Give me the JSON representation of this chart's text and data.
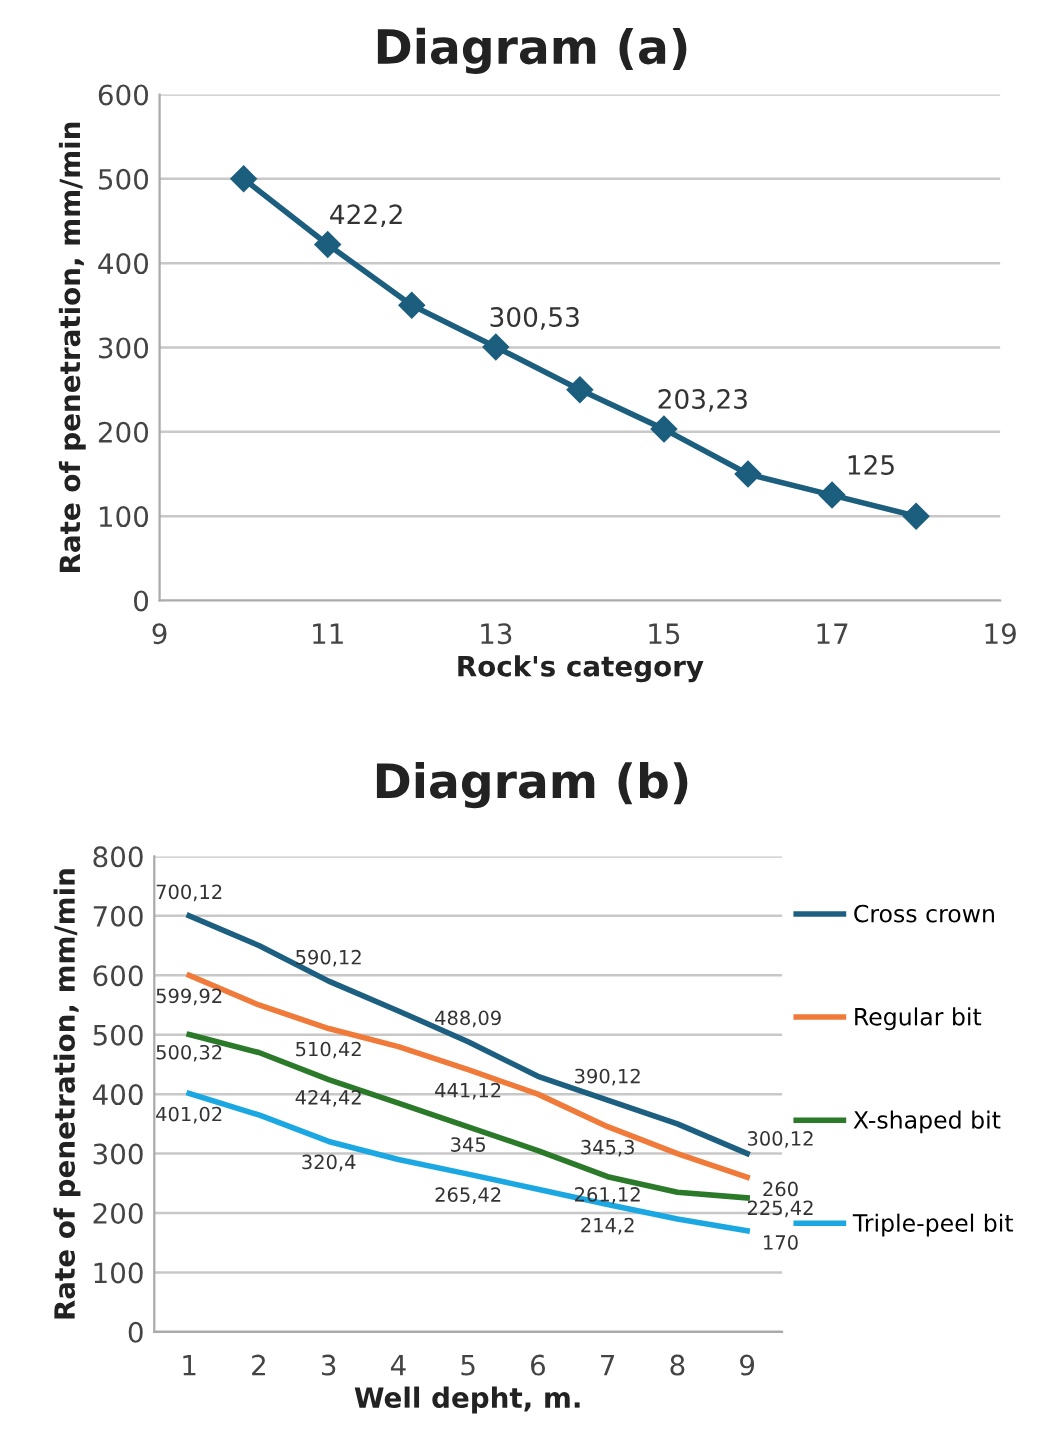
{
  "chart_data": [
    {
      "type": "line",
      "title": "Diagram (a)",
      "xlabel": "Rock's category",
      "ylabel": "Rate of penetration, mm/min",
      "xlim": [
        9,
        19
      ],
      "xticks": [
        9,
        11,
        13,
        15,
        17,
        19
      ],
      "ylim": [
        0,
        600
      ],
      "yticks": [
        0,
        100,
        200,
        300,
        400,
        500,
        600
      ],
      "grid": "y",
      "marker": "diamond",
      "line_style": "solid",
      "legend": false,
      "series": [
        {
          "color": "#1b5e7e",
          "x": [
            10,
            11,
            12,
            13,
            14,
            15,
            16,
            17,
            18
          ],
          "values": [
            500,
            422.2,
            350,
            300.53,
            250,
            203.23,
            150,
            125,
            100
          ],
          "value_labels": [
            null,
            "422,2",
            null,
            "300,53",
            null,
            "203,23",
            null,
            "125",
            null
          ]
        }
      ]
    },
    {
      "type": "line",
      "title": "Diagram (b)",
      "xlabel": "Well depht, m.",
      "ylabel": "Rate of penetration, mm/min",
      "categories": [
        "1",
        "2",
        "3",
        "4",
        "5",
        "6",
        "7",
        "8",
        "9"
      ],
      "ylim": [
        0,
        800
      ],
      "yticks": [
        0,
        100,
        200,
        300,
        400,
        500,
        600,
        700,
        800
      ],
      "grid": "y",
      "marker": "none",
      "line_style": "solid",
      "legend": "right",
      "series": [
        {
          "name": "Cross crown",
          "color": "#1d5f80",
          "values": [
            700.12,
            650,
            590.12,
            540,
            488.09,
            430,
            390.12,
            350,
            300.12
          ],
          "value_labels": [
            "700,12",
            null,
            "590,12",
            null,
            "488,09",
            null,
            "390,12",
            null,
            "300,12"
          ]
        },
        {
          "name": "Regular bit",
          "color": "#f07a3a",
          "values": [
            599.92,
            550,
            510.42,
            480,
            441.12,
            400,
            345.3,
            300,
            260
          ],
          "value_labels": [
            "599,92",
            null,
            "510,42",
            null,
            "441,12",
            null,
            "345,3",
            null,
            "260"
          ]
        },
        {
          "name": "X-shaped bit",
          "color": "#2a7a2a",
          "values": [
            500.32,
            470,
            424.42,
            385,
            345,
            305,
            261.12,
            235,
            225.42
          ],
          "value_labels": [
            "500,32",
            null,
            "424,42",
            null,
            "345",
            null,
            "261,12",
            null,
            "225,42"
          ]
        },
        {
          "name": "Triple-peel bit",
          "color": "#1ba8e2",
          "values": [
            401.02,
            365,
            320.4,
            290,
            265.42,
            240,
            214.2,
            190,
            170
          ],
          "value_labels": [
            "401,02",
            null,
            "320,4",
            null,
            "265,42",
            null,
            "214,2",
            null,
            "170"
          ]
        }
      ]
    }
  ]
}
